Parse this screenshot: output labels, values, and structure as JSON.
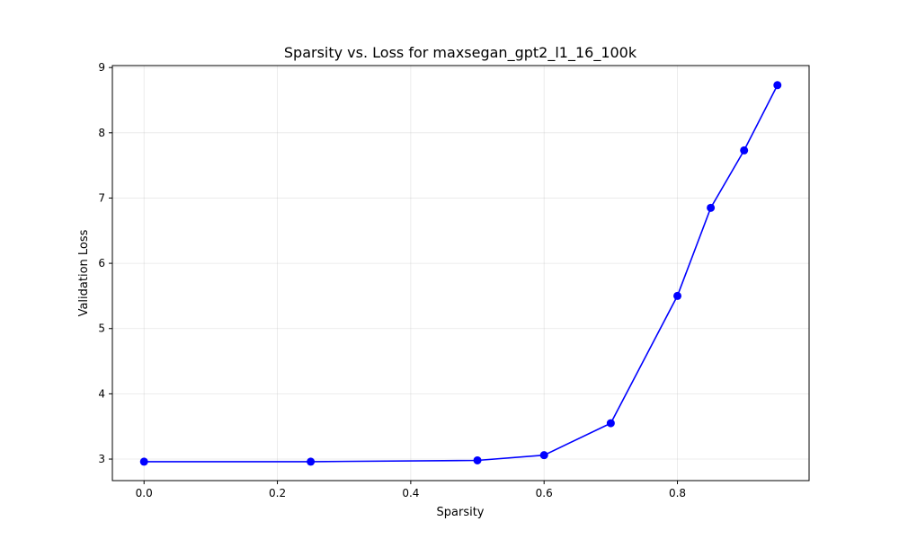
{
  "chart_data": {
    "type": "line",
    "title": "Sparsity vs. Loss for maxsegan_gpt2_l1_16_100k",
    "xlabel": "Sparsity",
    "ylabel": "Validation Loss",
    "xlim": [
      -0.0475,
      0.9975
    ],
    "ylim": [
      2.67,
      9.03
    ],
    "x_ticks": [
      0.0,
      0.2,
      0.4,
      0.6,
      0.8
    ],
    "x_tick_labels": [
      "0.0",
      "0.2",
      "0.4",
      "0.6",
      "0.8"
    ],
    "y_ticks": [
      3,
      4,
      5,
      6,
      7,
      8,
      9
    ],
    "y_tick_labels": [
      "3",
      "4",
      "5",
      "6",
      "7",
      "8",
      "9"
    ],
    "grid": true,
    "series": [
      {
        "color": "#0000ff",
        "marker": "circle",
        "x": [
          0.0,
          0.25,
          0.5,
          0.6,
          0.7,
          0.8,
          0.85,
          0.9,
          0.95
        ],
        "y": [
          2.96,
          2.96,
          2.98,
          3.06,
          3.55,
          5.5,
          6.85,
          7.73,
          8.73
        ]
      }
    ]
  }
}
